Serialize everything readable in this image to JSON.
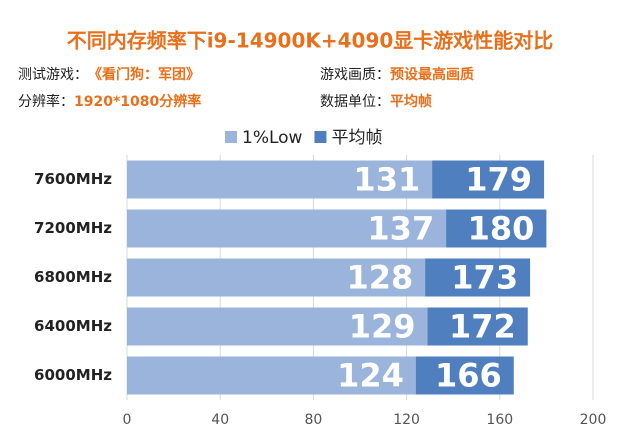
{
  "chart_data": {
    "type": "bar",
    "orientation": "horizontal",
    "title": "不同内存频率下i9-14900K+4090显卡游戏性能对比",
    "info": [
      {
        "label": "测试游戏：",
        "value": "《看门狗：军团》"
      },
      {
        "label": "游戏画质：",
        "value": "预设最高画质"
      },
      {
        "label": "分辨率：",
        "value": "1920*1080分辨率"
      },
      {
        "label": "数据单位：",
        "value": "平均帧"
      }
    ],
    "categories": [
      "7600MHz",
      "7200MHz",
      "6800MHz",
      "6400MHz",
      "6000MHz"
    ],
    "series": [
      {
        "name": "1%Low",
        "color": "#9ab4dc",
        "values": [
          131,
          137,
          128,
          129,
          124
        ]
      },
      {
        "name": "平均帧",
        "color": "#4f7fbf",
        "values": [
          179,
          180,
          173,
          172,
          166
        ]
      }
    ],
    "xlim": [
      0,
      200
    ],
    "xticks": [
      0,
      40,
      80,
      120,
      160,
      200
    ],
    "grid": true
  }
}
